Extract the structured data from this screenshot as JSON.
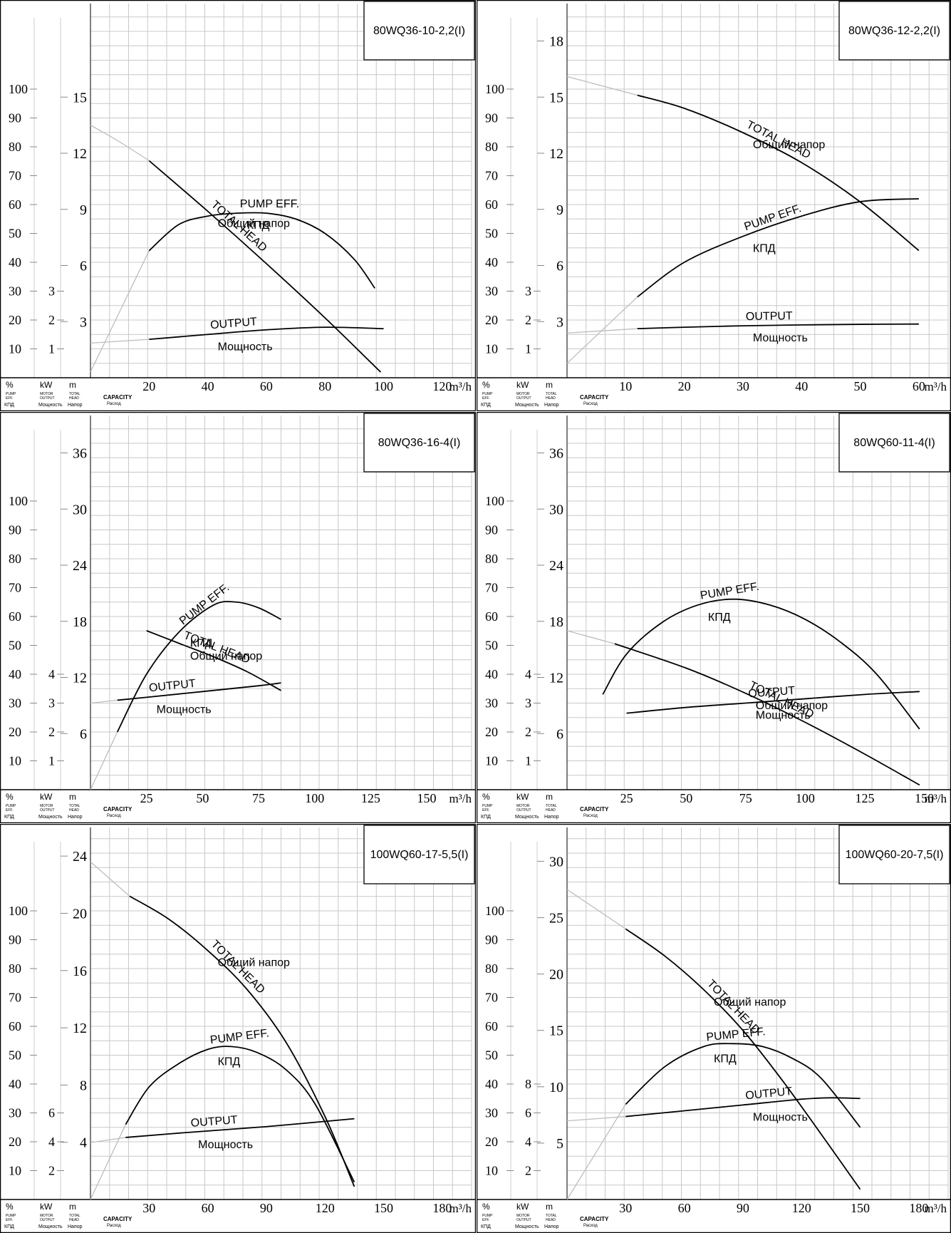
{
  "units": {
    "percent": "%",
    "kw": "kW",
    "m": "m",
    "eff_caption_1": "PUMP",
    "eff_caption_2": "EFF.",
    "eff_caption_ru": "КПД",
    "out_caption_1": "MOTOR",
    "out_caption_2": "OUTPUT",
    "out_caption_ru": "Мощность",
    "head_caption_1": "TOTAL",
    "head_caption_2": "HEAD",
    "head_caption_ru": "Напор",
    "capacity": "CAPACITY",
    "capacity_ru": "Расход",
    "flow_unit": "m³/h"
  },
  "chart_data": [
    {
      "type": "line",
      "title": "80WQ36-10-2,2(I)",
      "xlabel": "m³/h",
      "xlim": [
        0,
        130
      ],
      "x_ticks": [
        20,
        40,
        60,
        80,
        100,
        120
      ],
      "head_ylim": [
        0,
        20
      ],
      "head_ticks": [
        3,
        6,
        9,
        12,
        15
      ],
      "eff_ticks": [
        10,
        20,
        30,
        40,
        50,
        60,
        70,
        80,
        90,
        100
      ],
      "power_ticks": [
        1,
        2,
        3
      ],
      "grid": true,
      "series": [
        {
          "name": "TOTAL HEAD",
          "name_ru": "Общий напор",
          "axis": "head",
          "x": [
            0,
            10,
            20,
            40,
            60,
            80,
            99
          ],
          "y": [
            13.5,
            12.6,
            11.6,
            8.9,
            6.1,
            3.2,
            0.3
          ],
          "extrapolated_to_x": 20
        },
        {
          "name": "PUMP EFF.",
          "name_ru": "КПД",
          "axis": "eff",
          "x": [
            0,
            20,
            30,
            40,
            50,
            60,
            70,
            80,
            90,
            97
          ],
          "y": [
            2,
            44,
            53,
            56,
            57,
            57,
            55,
            50,
            41,
            31
          ],
          "extrapolated_to_x": 20
        },
        {
          "name": "OUTPUT",
          "name_ru": "Мощность",
          "axis": "power",
          "x": [
            0,
            20,
            40,
            60,
            80,
            100
          ],
          "y": [
            1.2,
            1.33,
            1.5,
            1.66,
            1.75,
            1.7
          ],
          "extrapolated_to_x": 20
        }
      ]
    },
    {
      "type": "line",
      "title": "80WQ36-12-2,2(I)",
      "xlabel": "m³/h",
      "xlim": [
        0,
        65
      ],
      "x_ticks": [
        10,
        20,
        30,
        40,
        50,
        60
      ],
      "head_ylim": [
        0,
        20
      ],
      "head_ticks": [
        3,
        6,
        9,
        12,
        15,
        18
      ],
      "eff_ticks": [
        10,
        20,
        30,
        40,
        50,
        60,
        70,
        80,
        90,
        100
      ],
      "power_ticks": [
        1,
        2,
        3
      ],
      "grid": true,
      "series": [
        {
          "name": "TOTAL HEAD",
          "name_ru": "Общий напор",
          "axis": "head",
          "x": [
            0,
            12,
            20,
            30,
            40,
            50,
            60
          ],
          "y": [
            16.1,
            15.1,
            14.4,
            13.1,
            11.5,
            9.4,
            6.8
          ],
          "extrapolated_to_x": 12
        },
        {
          "name": "PUMP EFF.",
          "name_ru": "КПД",
          "axis": "eff",
          "x": [
            0,
            12,
            20,
            30,
            40,
            50,
            60
          ],
          "y": [
            5,
            28,
            40,
            49,
            56,
            61,
            62
          ],
          "extrapolated_to_x": 12
        },
        {
          "name": "OUTPUT",
          "name_ru": "Мощность",
          "axis": "power",
          "x": [
            0,
            12,
            20,
            30,
            40,
            50,
            60
          ],
          "y": [
            1.55,
            1.7,
            1.75,
            1.8,
            1.83,
            1.85,
            1.86
          ],
          "extrapolated_to_x": 12
        }
      ]
    },
    {
      "type": "line",
      "title": "80WQ36-16-4(I)",
      "xlabel": "m³/h",
      "xlim": [
        0,
        170
      ],
      "x_ticks": [
        25,
        50,
        75,
        100,
        125,
        150
      ],
      "head_ylim": [
        0,
        40
      ],
      "head_ticks": [
        6,
        12,
        18,
        24,
        30,
        36
      ],
      "eff_ticks": [
        10,
        20,
        30,
        40,
        50,
        60,
        70,
        80,
        90,
        100
      ],
      "power_ticks": [
        1,
        2,
        3,
        4
      ],
      "grid": true,
      "series": [
        {
          "name": "TOTAL HEAD",
          "name_ru": "Общий напор",
          "axis": "head",
          "x": [
            0,
            25,
            40,
            55,
            70,
            85
          ],
          "y": [
            18.2,
            17.0,
            15.6,
            14.2,
            12.6,
            10.6
          ],
          "extrapolated_to_x": 10
        },
        {
          "name": "PUMP EFF.",
          "name_ru": "КПД",
          "axis": "eff",
          "x": [
            0,
            12,
            25,
            40,
            55,
            65,
            75,
            85
          ],
          "y": [
            0,
            20,
            40,
            55,
            64,
            65,
            63,
            59
          ],
          "extrapolated_to_x": 12
        },
        {
          "name": "OUTPUT",
          "name_ru": "Мощность",
          "axis": "power",
          "x": [
            0,
            12,
            25,
            50,
            75,
            85
          ],
          "y": [
            3.0,
            3.1,
            3.2,
            3.4,
            3.6,
            3.7
          ],
          "extrapolated_to_x": 12
        }
      ]
    },
    {
      "type": "line",
      "title": "80WQ60-11-4(I)",
      "xlabel": "m³/h",
      "xlim": [
        0,
        160
      ],
      "x_ticks": [
        25,
        50,
        75,
        100,
        125,
        150
      ],
      "head_ylim": [
        0,
        40
      ],
      "head_ticks": [
        6,
        12,
        18,
        24,
        30,
        36
      ],
      "eff_ticks": [
        10,
        20,
        30,
        40,
        50,
        60,
        70,
        80,
        90,
        100
      ],
      "power_ticks": [
        1,
        2,
        3,
        4
      ],
      "grid": true,
      "series": [
        {
          "name": "TOTAL HEAD",
          "name_ru": "Общий напор",
          "axis": "head",
          "x": [
            0,
            20,
            50,
            75,
            100,
            125,
            148
          ],
          "y": [
            17.0,
            15.6,
            13.0,
            10.3,
            7.2,
            3.8,
            0.5
          ],
          "extrapolated_to_x": 20
        },
        {
          "name": "PUMP EFF.",
          "name_ru": "КПД",
          "axis": "eff",
          "x": [
            15,
            25,
            40,
            55,
            70,
            85,
            100,
            115,
            130,
            148
          ],
          "y": [
            33,
            47,
            58,
            64,
            66,
            64,
            59,
            51,
            40,
            21
          ],
          "extrapolated_to_x": null
        },
        {
          "name": "OUTPUT",
          "name_ru": "Мощность",
          "axis": "power",
          "x": [
            0,
            25,
            50,
            75,
            100,
            125,
            148
          ],
          "y": [
            2.4,
            2.65,
            2.85,
            3.0,
            3.15,
            3.3,
            3.4
          ],
          "extrapolated_to_x": 15
        }
      ]
    },
    {
      "type": "line",
      "title": "100WQ60-17-5,5(I)",
      "xlabel": "m³/h",
      "xlim": [
        0,
        195
      ],
      "x_ticks": [
        30,
        60,
        90,
        120,
        150,
        180
      ],
      "head_ylim": [
        0,
        26
      ],
      "head_ticks": [
        4,
        8,
        12,
        16,
        20,
        24
      ],
      "eff_ticks": [
        10,
        20,
        30,
        40,
        50,
        60,
        70,
        80,
        90,
        100
      ],
      "power_ticks": [
        2,
        4,
        6
      ],
      "grid": true,
      "series": [
        {
          "name": "TOTAL HEAD",
          "name_ru": "Общий напор",
          "axis": "head",
          "x": [
            0,
            20,
            40,
            60,
            80,
            100,
            120,
            135
          ],
          "y": [
            23.6,
            21.2,
            19.6,
            17.4,
            14.7,
            11.0,
            5.8,
            0.9
          ],
          "extrapolated_to_x": 20
        },
        {
          "name": "PUMP EFF.",
          "name_ru": "КПД",
          "axis": "eff",
          "x": [
            0,
            18,
            30,
            45,
            60,
            72,
            85,
            100,
            115,
            135
          ],
          "y": [
            0,
            26,
            39,
            47,
            52,
            53,
            51,
            45,
            33,
            6
          ],
          "extrapolated_to_x": 18
        },
        {
          "name": "OUTPUT",
          "name_ru": "Мощность",
          "axis": "power",
          "x": [
            0,
            18,
            50,
            90,
            135
          ],
          "y": [
            3.95,
            4.3,
            4.65,
            5.05,
            5.6
          ],
          "extrapolated_to_x": 18
        }
      ]
    },
    {
      "type": "line",
      "title": "100WQ60-20-7,5(I)",
      "xlabel": "m³/h",
      "xlim": [
        0,
        195
      ],
      "x_ticks": [
        30,
        60,
        90,
        120,
        150,
        180
      ],
      "head_ylim": [
        0,
        33
      ],
      "head_ticks": [
        5,
        10,
        15,
        20,
        25,
        30
      ],
      "eff_ticks": [
        10,
        20,
        30,
        40,
        50,
        60,
        70,
        80,
        90,
        100
      ],
      "power_ticks": [
        2,
        4,
        6,
        8
      ],
      "grid": true,
      "series": [
        {
          "name": "TOTAL HEAD",
          "name_ru": "Общий напор",
          "axis": "head",
          "x": [
            0,
            30,
            50,
            70,
            90,
            110,
            130,
            150
          ],
          "y": [
            27.5,
            24.0,
            21.6,
            18.6,
            15.0,
            10.6,
            5.8,
            0.9
          ],
          "extrapolated_to_x": 30
        },
        {
          "name": "PUMP EFF.",
          "name_ru": "КПД",
          "axis": "eff",
          "x": [
            0,
            30,
            50,
            70,
            85,
            100,
            115,
            130,
            150
          ],
          "y": [
            0,
            33,
            46,
            53,
            54,
            53,
            49,
            42,
            25
          ],
          "extrapolated_to_x": 30
        },
        {
          "name": "OUTPUT",
          "name_ru": "Мощность",
          "axis": "power",
          "x": [
            0,
            30,
            60,
            90,
            120,
            135,
            150
          ],
          "y": [
            5.45,
            5.75,
            6.15,
            6.55,
            6.95,
            7.05,
            7.0
          ],
          "extrapolated_to_x": 30
        }
      ]
    }
  ]
}
